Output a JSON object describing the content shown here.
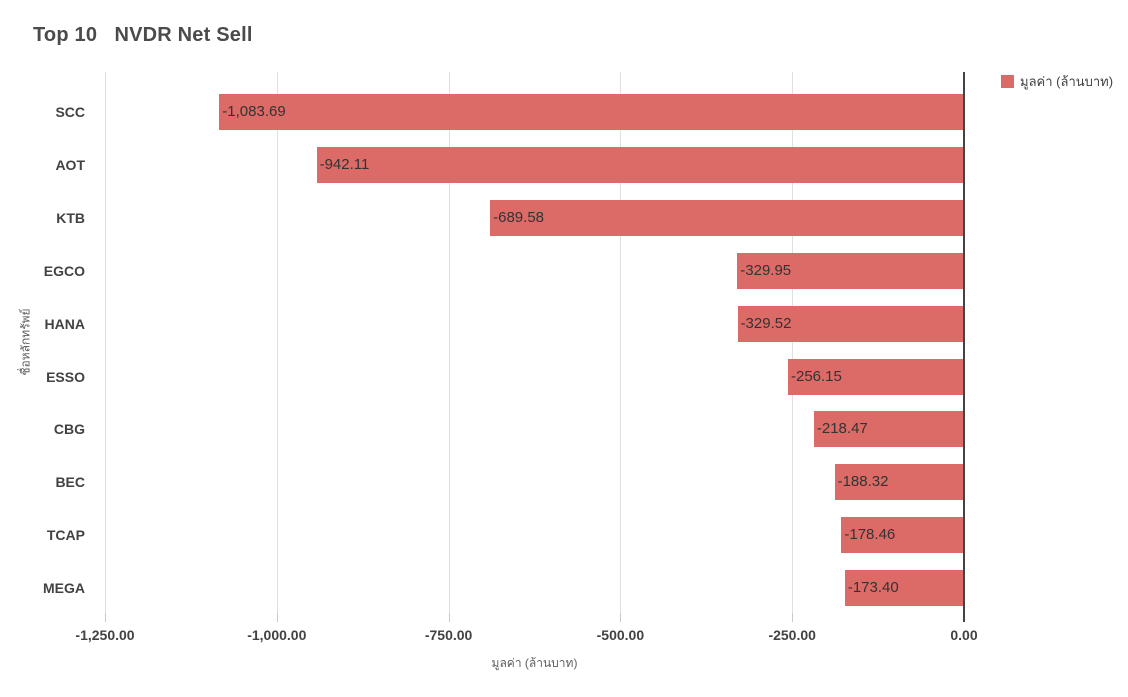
{
  "title": "Top 10   NVDR Net Sell",
  "legend": {
    "label": "มูลค่า (ล้านบาท)",
    "swatch_color": "#dc6a66"
  },
  "chart_data": {
    "type": "bar",
    "orientation": "horizontal",
    "title": "Top 10   NVDR Net Sell",
    "series_name": "มูลค่า (ล้านบาท)",
    "categories": [
      "SCC",
      "AOT",
      "KTB",
      "EGCO",
      "HANA",
      "ESSO",
      "CBG",
      "BEC",
      "TCAP",
      "MEGA"
    ],
    "values": [
      -1083.69,
      -942.11,
      -689.58,
      -329.95,
      -329.52,
      -256.15,
      -218.47,
      -188.32,
      -178.46,
      -173.4
    ],
    "value_labels": [
      "-1,083.69",
      "-942.11",
      "-689.58",
      "-329.95",
      "-329.52",
      "-256.15",
      "-218.47",
      "-188.32",
      "-178.46",
      "-173.40"
    ],
    "xlabel": "มูลค่า (ล้านบาท)",
    "ylabel": "ชื่อหลักทรัพย์",
    "xlim": [
      -1250,
      0
    ],
    "x_ticks": [
      -1250,
      -1000,
      -750,
      -500,
      -250,
      0
    ],
    "x_tick_labels": [
      "-1,250.00",
      "-1,000.00",
      "-750.00",
      "-500.00",
      "-250.00",
      "0.00"
    ],
    "grid": true,
    "legend_position": "top-right",
    "bar_color": "#dc6a66",
    "zero_line_color": "#434343",
    "gridline_color": "#e0e0e0"
  }
}
